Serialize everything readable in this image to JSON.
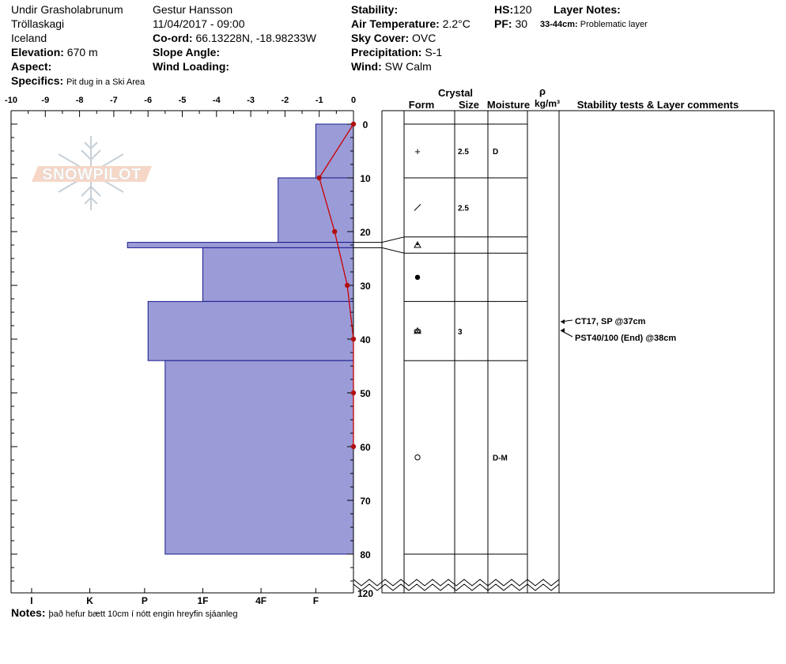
{
  "header": {
    "location": "Undir Grasholabrunum",
    "region": "Tröllaskagi",
    "country": "Iceland",
    "elevation_label": "Elevation:",
    "elevation": "670 m",
    "aspect_label": "Aspect:",
    "aspect": "",
    "specifics_label": "Specifics:",
    "specifics": "Pit dug in a Ski Area",
    "observer": "Gestur Hansson",
    "datetime": "11/04/2017 - 09:00",
    "coord_label": "Co-ord:",
    "coord": "66.13228N, -18.98233W",
    "slope_label": "Slope Angle:",
    "slope": "",
    "wind_loading_label": "Wind Loading:",
    "wind_loading": "",
    "stability_label": "Stability:",
    "stability": "",
    "air_temp_label": "Air Temperature:",
    "air_temp": "2.2°C",
    "sky_label": "Sky Cover:",
    "sky": "OVC",
    "precip_label": "Precipitation:",
    "precip": "S-1",
    "wind_label": "Wind:",
    "wind": "SW Calm",
    "hs_label": "HS:",
    "hs": "120",
    "pf_label": "PF:",
    "pf": "30",
    "layer_notes_label": "Layer Notes:",
    "layer_note_range": "33-44cm:",
    "layer_note_text": "Problematic layer"
  },
  "notes": {
    "label": "Notes:",
    "text": "það hefur bætt 10cm í nótt engin hreyfin sjáanleg"
  },
  "watermark": "SNOWPILOT",
  "colors": {
    "hardness_fill": "#9b9bd8",
    "hardness_stroke": "#1a1a8c",
    "temp_line": "#cc0000",
    "temp_point": "#b01010"
  },
  "chart_data": {
    "type": "snow-profile",
    "temperature_axis": {
      "ticks": [
        "-10",
        "-9",
        "-8",
        "-7",
        "-6",
        "-5",
        "-4",
        "-3",
        "-2",
        "-1",
        "0"
      ],
      "range": [
        -10,
        0
      ]
    },
    "depth_axis": {
      "ticks": [
        "0",
        "10",
        "20",
        "30",
        "40",
        "50",
        "60",
        "70",
        "80",
        "120"
      ],
      "range": [
        0,
        120
      ],
      "unit": "cm"
    },
    "hardness_axis": {
      "labels": [
        "I",
        "K",
        "P",
        "1F",
        "4F",
        "F"
      ],
      "label_positions_deg_c": [
        -9.4,
        -7.7,
        -6.1,
        -4.4,
        -2.7,
        -1.1
      ]
    },
    "temperature_profile": [
      {
        "depth": 0,
        "temp": 0
      },
      {
        "depth": 10,
        "temp": -1.0
      },
      {
        "depth": 20,
        "temp": -0.55
      },
      {
        "depth": 30,
        "temp": -0.18
      },
      {
        "depth": 40,
        "temp": 0
      },
      {
        "depth": 50,
        "temp": 0
      },
      {
        "depth": 60,
        "temp": 0
      }
    ],
    "hardness_layers": [
      {
        "top": 0,
        "bottom": 10,
        "extent": -1.1
      },
      {
        "top": 10,
        "bottom": 22,
        "extent": -2.2
      },
      {
        "top": 22,
        "bottom": 23,
        "extent": -6.6
      },
      {
        "top": 23,
        "bottom": 33,
        "extent": -4.4
      },
      {
        "top": 33,
        "bottom": 44,
        "extent": -6.0
      },
      {
        "top": 44,
        "bottom": 80,
        "extent": -5.5
      }
    ],
    "columns": {
      "crystal": "Crystal",
      "form": "Form",
      "size": "Size",
      "moisture": "Moisture",
      "rho": "ρ",
      "density_unit": "kg/m³",
      "comments": "Stability tests & Layer comments"
    },
    "layers": [
      {
        "top": 0,
        "bottom": 10,
        "form": "+",
        "size": "2.5",
        "moisture": "D"
      },
      {
        "top": 10,
        "bottom": 21,
        "form": "/",
        "size": "2.5",
        "moisture": ""
      },
      {
        "top": 21,
        "bottom": 24,
        "form": "facet",
        "size": "",
        "moisture": ""
      },
      {
        "top": 24,
        "bottom": 33,
        "form": "•",
        "size": "",
        "moisture": ""
      },
      {
        "top": 33,
        "bottom": 44,
        "form": "facet-cup",
        "size": "3",
        "moisture": ""
      },
      {
        "top": 44,
        "bottom": 80,
        "form": "○",
        "size": "",
        "moisture": "D-M"
      }
    ],
    "stability_tests": [
      {
        "depth": 37,
        "text": "CT17, SP @37cm"
      },
      {
        "depth": 38,
        "text": "PST40/100 (End) @38cm"
      }
    ]
  }
}
